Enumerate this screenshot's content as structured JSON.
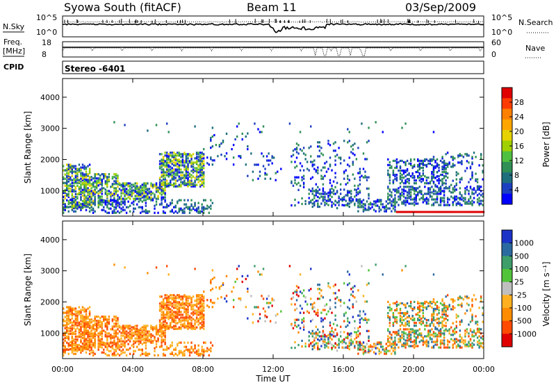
{
  "header": {
    "station": "Syowa South (fitACF)",
    "beam": "Beam 11",
    "date": "03/Sep/2009"
  },
  "top_panels": {
    "nsky_label": "N.Sky",
    "nsearch_label": "N.Search",
    "freq_label_1": "Freq.",
    "freq_label_2": "[MHz]",
    "nave_label": "Nave",
    "cpid_label": "CPID",
    "cpid_value": "Stereo -6401",
    "noise_ticks": [
      "10^5",
      "10^0"
    ],
    "freq_ticks": [
      "18",
      "8"
    ],
    "nave_ticks": [
      "60",
      "0"
    ]
  },
  "chart_data": [
    {
      "type": "heatmap",
      "name": "power",
      "ylabel": "Slant Range [km]",
      "ylim": [
        180,
        4600
      ],
      "yticks": [
        "1000",
        "2000",
        "3000",
        "4000"
      ],
      "xlim": [
        0,
        24
      ],
      "colorbar_label": "Power [dB]",
      "colorbar_ticks": [
        "28",
        "24",
        "20",
        "16",
        "12",
        "8",
        "4"
      ],
      "colorbar_colors": [
        "#e00000",
        "#ff3c00",
        "#ff8000",
        "#ffa500",
        "#e6d200",
        "#a0d000",
        "#50c040",
        "#2f8f55",
        "#1e6e7e",
        "#1c3fc0",
        "#0000ff"
      ]
    },
    {
      "type": "heatmap",
      "name": "velocity",
      "ylabel": "Slant Range [km]",
      "ylim": [
        180,
        4600
      ],
      "yticks": [
        "1000",
        "2000",
        "3000",
        "4000"
      ],
      "xlim": [
        0,
        24
      ],
      "xlabel": "Time UT",
      "xticks": [
        "00:00",
        "04:00",
        "08:00",
        "12:00",
        "16:00",
        "20:00",
        "00:00"
      ],
      "colorbar_label": "Velocity [m s⁻¹]",
      "colorbar_ticks": [
        "1000",
        "500",
        "100",
        "25",
        "-25",
        "-100",
        "-500",
        "-1000"
      ],
      "colorbar_colors": [
        "#1c33c8",
        "#2b6aa0",
        "#3d9e6a",
        "#52c43a",
        "#bfbfbf",
        "#ffb020",
        "#ff8c00",
        "#ff4a00",
        "#e00000"
      ]
    }
  ]
}
